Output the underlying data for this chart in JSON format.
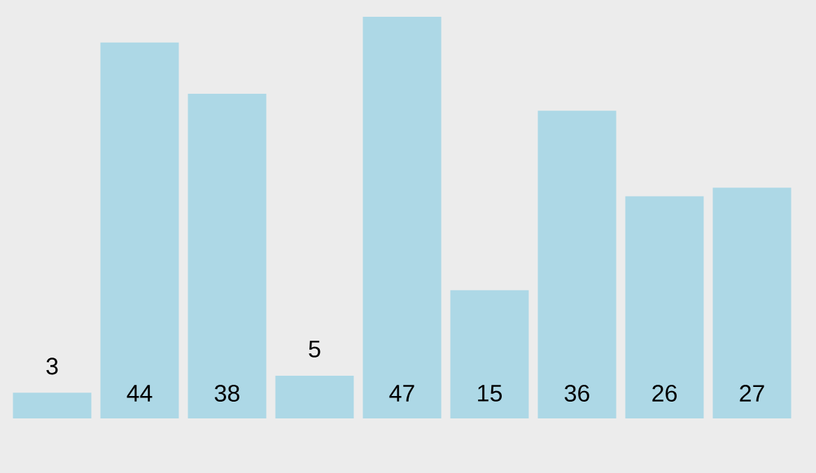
{
  "chart_data": {
    "type": "bar",
    "categories": [
      null,
      null,
      null,
      null,
      null,
      null,
      null,
      null,
      null
    ],
    "values": [
      3,
      44,
      38,
      5,
      47,
      15,
      36,
      26,
      27
    ],
    "color": "#add8e6",
    "data_labels": true
  }
}
